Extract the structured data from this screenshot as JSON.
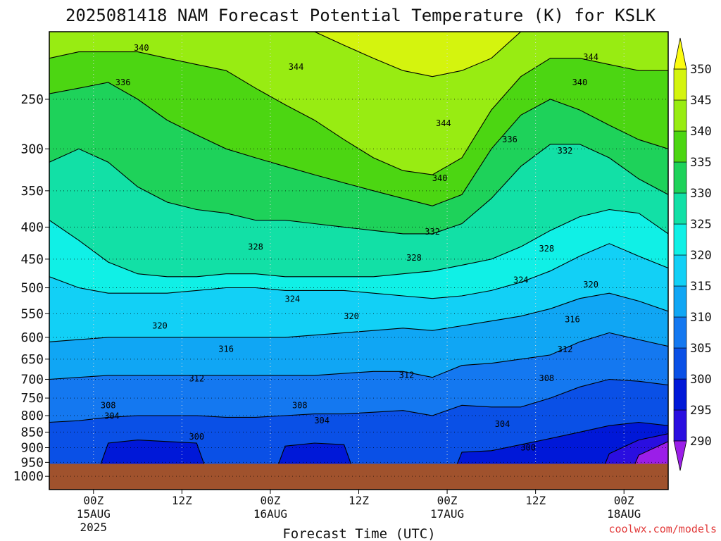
{
  "title": "2025081418 NAM Forecast Potential Temperature (K) for KSLK",
  "credit": "coolwx.com/models",
  "credit_color": "#e23a3a",
  "ground_color": "#a0522d",
  "chart_data": {
    "type": "heatmap",
    "title": "2025081418 NAM Forecast Potential Temperature (K) for KSLK",
    "xlabel": "Forecast Time (UTC)",
    "ylabel": "",
    "x_range_hours": [
      -6,
      78
    ],
    "pressure_range_hPa": [
      1050,
      195
    ],
    "pressure_scale": "log",
    "y_ticks": [
      250,
      300,
      350,
      400,
      450,
      500,
      550,
      600,
      650,
      700,
      750,
      800,
      850,
      900,
      950,
      1000
    ],
    "x_ticks": [
      {
        "hour": 0,
        "line1": "00Z",
        "line2": "15AUG",
        "line3": "2025"
      },
      {
        "hour": 12,
        "line1": "12Z",
        "line2": "",
        "line3": ""
      },
      {
        "hour": 24,
        "line1": "00Z",
        "line2": "16AUG",
        "line3": ""
      },
      {
        "hour": 36,
        "line1": "12Z",
        "line2": "",
        "line3": ""
      },
      {
        "hour": 48,
        "line1": "00Z",
        "line2": "17AUG",
        "line3": ""
      },
      {
        "hour": 60,
        "line1": "12Z",
        "line2": "",
        "line3": ""
      },
      {
        "hour": 72,
        "line1": "00Z",
        "line2": "18AUG",
        "line3": ""
      }
    ],
    "grid": "dotted",
    "surface_pressure_hPa": 955,
    "colorbar": {
      "levels": [
        290,
        295,
        300,
        305,
        310,
        315,
        320,
        325,
        330,
        335,
        340,
        345,
        350
      ],
      "labels": [
        "290",
        "295",
        "300",
        "305",
        "310",
        "315",
        "320",
        "325",
        "330",
        "335",
        "340",
        "345",
        "350"
      ],
      "colors": [
        "#9b1ee8",
        "#2a0ee0",
        "#0018d8",
        "#0a50e6",
        "#1478f0",
        "#10a6f4",
        "#12d0f6",
        "#10f0e6",
        "#12e0a6",
        "#1ed25a",
        "#4cd612",
        "#98ec12",
        "#d4f40e",
        "#fcfc10"
      ]
    },
    "series": [
      {
        "name": "290",
        "hour": [
          -6,
          -2,
          2,
          6,
          10,
          14,
          18,
          22,
          26,
          30,
          34,
          38,
          42,
          46,
          50,
          54,
          58,
          62,
          66,
          70,
          74,
          78
        ],
        "pressure": [
          1200,
          1200,
          1200,
          1200,
          1200,
          1200,
          1200,
          1200,
          1200,
          1200,
          1200,
          1200,
          1200,
          1200,
          1200,
          1200,
          1200,
          1200,
          1200,
          1200,
          925,
          880
        ]
      },
      {
        "name": "295",
        "hour": [
          -6,
          -2,
          2,
          6,
          10,
          14,
          18,
          22,
          26,
          30,
          34,
          38,
          42,
          46,
          50,
          54,
          58,
          62,
          66,
          70,
          74,
          78
        ],
        "pressure": [
          1200,
          1200,
          1200,
          1200,
          1200,
          1200,
          1200,
          1200,
          1200,
          1200,
          1200,
          1200,
          1200,
          1200,
          1200,
          1200,
          1200,
          1200,
          1200,
          920,
          875,
          855
        ]
      },
      {
        "name": "300",
        "hour": [
          -6,
          -2,
          2,
          6,
          10,
          14,
          18,
          22,
          26,
          30,
          34,
          38,
          42,
          46,
          50,
          54,
          58,
          62,
          66,
          70,
          74,
          78
        ],
        "pressure": [
          1200,
          1200,
          885,
          875,
          880,
          885,
          1200,
          1200,
          895,
          885,
          890,
          1200,
          1200,
          1200,
          915,
          910,
          890,
          870,
          850,
          830,
          820,
          830
        ]
      },
      {
        "name": "305",
        "hour": [
          -6,
          -2,
          2,
          6,
          10,
          14,
          18,
          22,
          26,
          30,
          34,
          38,
          42,
          46,
          50,
          54,
          58,
          62,
          66,
          70,
          74,
          78
        ],
        "pressure": [
          820,
          815,
          805,
          800,
          800,
          800,
          805,
          805,
          800,
          795,
          795,
          790,
          785,
          800,
          770,
          775,
          775,
          750,
          720,
          700,
          705,
          715
        ]
      },
      {
        "name": "310",
        "hour": [
          -6,
          -2,
          2,
          6,
          10,
          14,
          18,
          22,
          26,
          30,
          34,
          38,
          42,
          46,
          50,
          54,
          58,
          62,
          66,
          70,
          74,
          78
        ],
        "pressure": [
          700,
          695,
          690,
          690,
          690,
          690,
          690,
          690,
          690,
          690,
          685,
          680,
          680,
          695,
          665,
          660,
          650,
          640,
          610,
          590,
          605,
          620
        ]
      },
      {
        "name": "315",
        "hour": [
          -6,
          -2,
          2,
          6,
          10,
          14,
          18,
          22,
          26,
          30,
          34,
          38,
          42,
          46,
          50,
          54,
          58,
          62,
          66,
          70,
          74,
          78
        ],
        "pressure": [
          610,
          605,
          600,
          600,
          600,
          600,
          600,
          600,
          600,
          595,
          590,
          585,
          580,
          585,
          575,
          565,
          555,
          540,
          520,
          510,
          525,
          545
        ]
      },
      {
        "name": "320",
        "hour": [
          -6,
          -2,
          2,
          6,
          10,
          14,
          18,
          22,
          26,
          30,
          34,
          38,
          42,
          46,
          50,
          54,
          58,
          62,
          66,
          70,
          74,
          78
        ],
        "pressure": [
          480,
          500,
          510,
          510,
          510,
          505,
          500,
          500,
          505,
          505,
          505,
          510,
          515,
          520,
          515,
          505,
          490,
          470,
          445,
          425,
          445,
          465
        ]
      },
      {
        "name": "325",
        "hour": [
          -6,
          -2,
          2,
          6,
          10,
          14,
          18,
          22,
          26,
          30,
          34,
          38,
          42,
          46,
          50,
          54,
          58,
          62,
          66,
          70,
          74,
          78
        ],
        "pressure": [
          390,
          420,
          455,
          475,
          480,
          480,
          475,
          475,
          480,
          480,
          480,
          480,
          475,
          470,
          460,
          450,
          430,
          405,
          385,
          375,
          380,
          410
        ]
      },
      {
        "name": "330",
        "hour": [
          -6,
          -2,
          2,
          6,
          10,
          14,
          18,
          22,
          26,
          30,
          34,
          38,
          42,
          46,
          50,
          54,
          58,
          62,
          66,
          70,
          74,
          78
        ],
        "pressure": [
          315,
          300,
          315,
          345,
          365,
          375,
          380,
          390,
          390,
          395,
          400,
          405,
          410,
          410,
          395,
          360,
          320,
          295,
          295,
          310,
          335,
          355
        ]
      },
      {
        "name": "335",
        "hour": [
          -6,
          -2,
          2,
          6,
          10,
          14,
          18,
          22,
          26,
          30,
          34,
          38,
          42,
          46,
          50,
          54,
          58,
          62,
          66,
          70,
          74,
          78
        ],
        "pressure": [
          245,
          240,
          235,
          250,
          270,
          285,
          300,
          310,
          320,
          330,
          340,
          350,
          360,
          370,
          355,
          300,
          265,
          250,
          260,
          275,
          290,
          300
        ]
      },
      {
        "name": "340",
        "hour": [
          -6,
          -2,
          2,
          6,
          10,
          14,
          18,
          22,
          26,
          30,
          34,
          38,
          42,
          46,
          50,
          54,
          58,
          62,
          66,
          70,
          74,
          78
        ],
        "pressure": [
          215,
          210,
          210,
          210,
          215,
          220,
          225,
          240,
          255,
          270,
          290,
          310,
          325,
          330,
          310,
          260,
          230,
          215,
          215,
          220,
          225,
          225
        ]
      },
      {
        "name": "345",
        "hour": [
          -6,
          -2,
          2,
          6,
          10,
          14,
          18,
          22,
          26,
          30,
          34,
          38,
          42,
          46,
          50,
          54,
          58,
          62,
          66,
          70,
          74,
          78
        ],
        "pressure": [
          190,
          190,
          190,
          190,
          190,
          190,
          190,
          190,
          190,
          195,
          205,
          215,
          225,
          230,
          225,
          215,
          195,
          190,
          190,
          190,
          190,
          190
        ]
      },
      {
        "name": "350",
        "hour": [
          -6,
          -2,
          2,
          6,
          10,
          14,
          18,
          22,
          26,
          30,
          34,
          38,
          42,
          46,
          50,
          54,
          58,
          62,
          66,
          70,
          74,
          78
        ],
        "pressure": [
          160,
          160,
          160,
          160,
          160,
          160,
          160,
          160,
          160,
          160,
          160,
          160,
          160,
          160,
          160,
          160,
          160,
          160,
          160,
          160,
          160,
          160
        ]
      }
    ],
    "contour_labels": [
      {
        "text": "340",
        "hour": 6.5,
        "pressure": 207
      },
      {
        "text": "344",
        "hour": 27.5,
        "pressure": 222
      },
      {
        "text": "344",
        "hour": 67.5,
        "pressure": 214
      },
      {
        "text": "336",
        "hour": 4,
        "pressure": 235
      },
      {
        "text": "340",
        "hour": 66,
        "pressure": 235
      },
      {
        "text": "344",
        "hour": 47.5,
        "pressure": 273
      },
      {
        "text": "336",
        "hour": 56.5,
        "pressure": 290
      },
      {
        "text": "332",
        "hour": 64,
        "pressure": 302
      },
      {
        "text": "340",
        "hour": 47,
        "pressure": 334
      },
      {
        "text": "332",
        "hour": 46,
        "pressure": 407
      },
      {
        "text": "328",
        "hour": 22,
        "pressure": 430
      },
      {
        "text": "328",
        "hour": 43.5,
        "pressure": 448
      },
      {
        "text": "328",
        "hour": 61.5,
        "pressure": 433
      },
      {
        "text": "324",
        "hour": 58,
        "pressure": 486
      },
      {
        "text": "320",
        "hour": 67.5,
        "pressure": 494
      },
      {
        "text": "324",
        "hour": 27,
        "pressure": 521
      },
      {
        "text": "320",
        "hour": 35,
        "pressure": 555
      },
      {
        "text": "316",
        "hour": 65,
        "pressure": 562
      },
      {
        "text": "320",
        "hour": 9,
        "pressure": 575
      },
      {
        "text": "316",
        "hour": 18,
        "pressure": 626
      },
      {
        "text": "312",
        "hour": 64,
        "pressure": 627
      },
      {
        "text": "312",
        "hour": 42.5,
        "pressure": 689
      },
      {
        "text": "312",
        "hour": 14,
        "pressure": 698
      },
      {
        "text": "308",
        "hour": 61.5,
        "pressure": 697
      },
      {
        "text": "308",
        "hour": 2,
        "pressure": 770
      },
      {
        "text": "308",
        "hour": 28,
        "pressure": 770
      },
      {
        "text": "304",
        "hour": 2.5,
        "pressure": 801
      },
      {
        "text": "304",
        "hour": 31,
        "pressure": 815
      },
      {
        "text": "304",
        "hour": 55.5,
        "pressure": 825
      },
      {
        "text": "300",
        "hour": 14,
        "pressure": 865
      },
      {
        "text": "300",
        "hour": 59,
        "pressure": 900
      }
    ]
  }
}
